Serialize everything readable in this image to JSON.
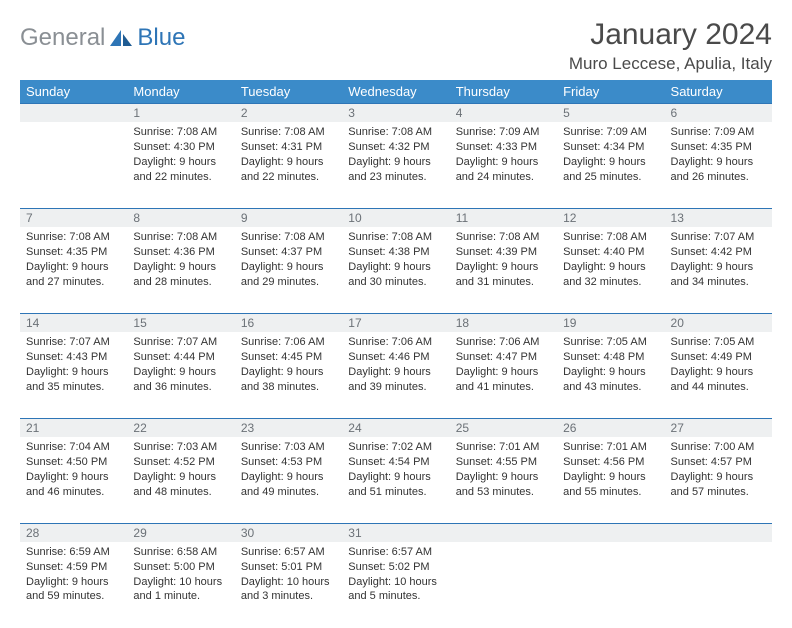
{
  "brand": {
    "part1": "General",
    "part2": "Blue"
  },
  "title": "January 2024",
  "location": "Muro Leccese, Apulia, Italy",
  "colors": {
    "header_bg": "#3b8bc9",
    "header_text": "#ffffff",
    "daynum_bg": "#eef0f1",
    "daynum_text": "#6b7177",
    "rule": "#2e75b6",
    "body_text": "#333333",
    "logo_gray": "#8a8f94",
    "logo_blue": "#2e75b6"
  },
  "weekdays": [
    "Sunday",
    "Monday",
    "Tuesday",
    "Wednesday",
    "Thursday",
    "Friday",
    "Saturday"
  ],
  "weeks": [
    [
      null,
      {
        "n": "1",
        "sr": "Sunrise: 7:08 AM",
        "ss": "Sunset: 4:30 PM",
        "d1": "Daylight: 9 hours",
        "d2": "and 22 minutes."
      },
      {
        "n": "2",
        "sr": "Sunrise: 7:08 AM",
        "ss": "Sunset: 4:31 PM",
        "d1": "Daylight: 9 hours",
        "d2": "and 22 minutes."
      },
      {
        "n": "3",
        "sr": "Sunrise: 7:08 AM",
        "ss": "Sunset: 4:32 PM",
        "d1": "Daylight: 9 hours",
        "d2": "and 23 minutes."
      },
      {
        "n": "4",
        "sr": "Sunrise: 7:09 AM",
        "ss": "Sunset: 4:33 PM",
        "d1": "Daylight: 9 hours",
        "d2": "and 24 minutes."
      },
      {
        "n": "5",
        "sr": "Sunrise: 7:09 AM",
        "ss": "Sunset: 4:34 PM",
        "d1": "Daylight: 9 hours",
        "d2": "and 25 minutes."
      },
      {
        "n": "6",
        "sr": "Sunrise: 7:09 AM",
        "ss": "Sunset: 4:35 PM",
        "d1": "Daylight: 9 hours",
        "d2": "and 26 minutes."
      }
    ],
    [
      {
        "n": "7",
        "sr": "Sunrise: 7:08 AM",
        "ss": "Sunset: 4:35 PM",
        "d1": "Daylight: 9 hours",
        "d2": "and 27 minutes."
      },
      {
        "n": "8",
        "sr": "Sunrise: 7:08 AM",
        "ss": "Sunset: 4:36 PM",
        "d1": "Daylight: 9 hours",
        "d2": "and 28 minutes."
      },
      {
        "n": "9",
        "sr": "Sunrise: 7:08 AM",
        "ss": "Sunset: 4:37 PM",
        "d1": "Daylight: 9 hours",
        "d2": "and 29 minutes."
      },
      {
        "n": "10",
        "sr": "Sunrise: 7:08 AM",
        "ss": "Sunset: 4:38 PM",
        "d1": "Daylight: 9 hours",
        "d2": "and 30 minutes."
      },
      {
        "n": "11",
        "sr": "Sunrise: 7:08 AM",
        "ss": "Sunset: 4:39 PM",
        "d1": "Daylight: 9 hours",
        "d2": "and 31 minutes."
      },
      {
        "n": "12",
        "sr": "Sunrise: 7:08 AM",
        "ss": "Sunset: 4:40 PM",
        "d1": "Daylight: 9 hours",
        "d2": "and 32 minutes."
      },
      {
        "n": "13",
        "sr": "Sunrise: 7:07 AM",
        "ss": "Sunset: 4:42 PM",
        "d1": "Daylight: 9 hours",
        "d2": "and 34 minutes."
      }
    ],
    [
      {
        "n": "14",
        "sr": "Sunrise: 7:07 AM",
        "ss": "Sunset: 4:43 PM",
        "d1": "Daylight: 9 hours",
        "d2": "and 35 minutes."
      },
      {
        "n": "15",
        "sr": "Sunrise: 7:07 AM",
        "ss": "Sunset: 4:44 PM",
        "d1": "Daylight: 9 hours",
        "d2": "and 36 minutes."
      },
      {
        "n": "16",
        "sr": "Sunrise: 7:06 AM",
        "ss": "Sunset: 4:45 PM",
        "d1": "Daylight: 9 hours",
        "d2": "and 38 minutes."
      },
      {
        "n": "17",
        "sr": "Sunrise: 7:06 AM",
        "ss": "Sunset: 4:46 PM",
        "d1": "Daylight: 9 hours",
        "d2": "and 39 minutes."
      },
      {
        "n": "18",
        "sr": "Sunrise: 7:06 AM",
        "ss": "Sunset: 4:47 PM",
        "d1": "Daylight: 9 hours",
        "d2": "and 41 minutes."
      },
      {
        "n": "19",
        "sr": "Sunrise: 7:05 AM",
        "ss": "Sunset: 4:48 PM",
        "d1": "Daylight: 9 hours",
        "d2": "and 43 minutes."
      },
      {
        "n": "20",
        "sr": "Sunrise: 7:05 AM",
        "ss": "Sunset: 4:49 PM",
        "d1": "Daylight: 9 hours",
        "d2": "and 44 minutes."
      }
    ],
    [
      {
        "n": "21",
        "sr": "Sunrise: 7:04 AM",
        "ss": "Sunset: 4:50 PM",
        "d1": "Daylight: 9 hours",
        "d2": "and 46 minutes."
      },
      {
        "n": "22",
        "sr": "Sunrise: 7:03 AM",
        "ss": "Sunset: 4:52 PM",
        "d1": "Daylight: 9 hours",
        "d2": "and 48 minutes."
      },
      {
        "n": "23",
        "sr": "Sunrise: 7:03 AM",
        "ss": "Sunset: 4:53 PM",
        "d1": "Daylight: 9 hours",
        "d2": "and 49 minutes."
      },
      {
        "n": "24",
        "sr": "Sunrise: 7:02 AM",
        "ss": "Sunset: 4:54 PM",
        "d1": "Daylight: 9 hours",
        "d2": "and 51 minutes."
      },
      {
        "n": "25",
        "sr": "Sunrise: 7:01 AM",
        "ss": "Sunset: 4:55 PM",
        "d1": "Daylight: 9 hours",
        "d2": "and 53 minutes."
      },
      {
        "n": "26",
        "sr": "Sunrise: 7:01 AM",
        "ss": "Sunset: 4:56 PM",
        "d1": "Daylight: 9 hours",
        "d2": "and 55 minutes."
      },
      {
        "n": "27",
        "sr": "Sunrise: 7:00 AM",
        "ss": "Sunset: 4:57 PM",
        "d1": "Daylight: 9 hours",
        "d2": "and 57 minutes."
      }
    ],
    [
      {
        "n": "28",
        "sr": "Sunrise: 6:59 AM",
        "ss": "Sunset: 4:59 PM",
        "d1": "Daylight: 9 hours",
        "d2": "and 59 minutes."
      },
      {
        "n": "29",
        "sr": "Sunrise: 6:58 AM",
        "ss": "Sunset: 5:00 PM",
        "d1": "Daylight: 10 hours",
        "d2": "and 1 minute."
      },
      {
        "n": "30",
        "sr": "Sunrise: 6:57 AM",
        "ss": "Sunset: 5:01 PM",
        "d1": "Daylight: 10 hours",
        "d2": "and 3 minutes."
      },
      {
        "n": "31",
        "sr": "Sunrise: 6:57 AM",
        "ss": "Sunset: 5:02 PM",
        "d1": "Daylight: 10 hours",
        "d2": "and 5 minutes."
      },
      null,
      null,
      null
    ]
  ]
}
